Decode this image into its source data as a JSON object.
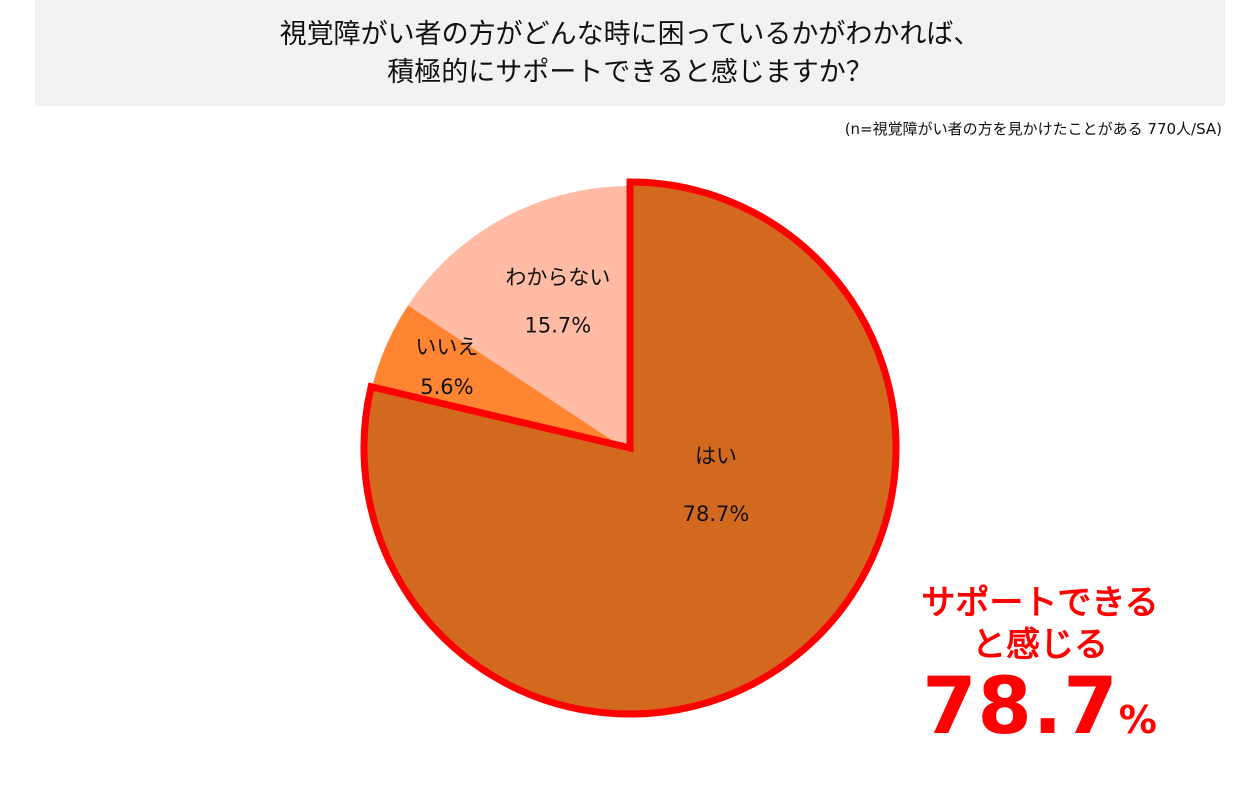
{
  "header": {
    "title_line1": "視覚障がい者の方がどんな時に困っているかがわかれば、",
    "title_line2": "積極的にサポートできると感じますか？",
    "sample_note": "(n=視覚障がい者の方を見かけたことがある 770人/SA)"
  },
  "chart_data": {
    "type": "pie",
    "start": "12 o'clock, clockwise",
    "slices": [
      {
        "label": "はい",
        "value": 78.7,
        "display": "78.7%",
        "color": "#d2691e",
        "highlighted": true
      },
      {
        "label": "いいえ",
        "value": 5.6,
        "display": "5.6%",
        "color": "#ff8533"
      },
      {
        "label": "わからない",
        "value": 15.7,
        "display": "15.7%",
        "color": "#ffbba3"
      }
    ],
    "highlight_color": "#ff0000"
  },
  "callout": {
    "line1": "サポートできる",
    "line2": "と感じる",
    "value": "78.7",
    "unit": "%"
  }
}
